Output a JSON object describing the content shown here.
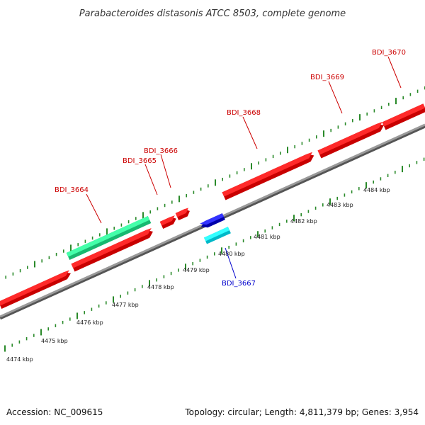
{
  "title": "Parabacteroides distasonis ATCC 8503, complete genome",
  "footer": {
    "accession": "Accession: NC_009615",
    "topology": "Topology: circular; Length: 4,811,379 bp; Genes: 3,954"
  },
  "colors": {
    "forward_gene": "#ff0000",
    "reverse_gene": "#0000ff",
    "forward_label": "#cc0000",
    "reverse_label": "#0000cc",
    "green_feature": "#33ee99",
    "cyan_feature": "#00ffff",
    "backbone": "#888888",
    "ticks": "#2a8a2a"
  },
  "genes": [
    {
      "id": "BDI_3664",
      "strand": "+"
    },
    {
      "id": "BDI_3665",
      "strand": "+"
    },
    {
      "id": "BDI_3666",
      "strand": "+"
    },
    {
      "id": "BDI_3667",
      "strand": "-"
    },
    {
      "id": "BDI_3668",
      "strand": "+"
    },
    {
      "id": "BDI_3669",
      "strand": "+"
    },
    {
      "id": "BDI_3670",
      "strand": "+"
    }
  ],
  "ticks": [
    {
      "label": "4474 kbp"
    },
    {
      "label": "4475 kbp"
    },
    {
      "label": "4476 kbp"
    },
    {
      "label": "4477 kbp"
    },
    {
      "label": "4478 kbp"
    },
    {
      "label": "4479 kbp"
    },
    {
      "label": "4480 kbp"
    },
    {
      "label": "4481 kbp"
    },
    {
      "label": "4482 kbp"
    },
    {
      "label": "4483 kbp"
    },
    {
      "label": "4484 kbp"
    }
  ]
}
